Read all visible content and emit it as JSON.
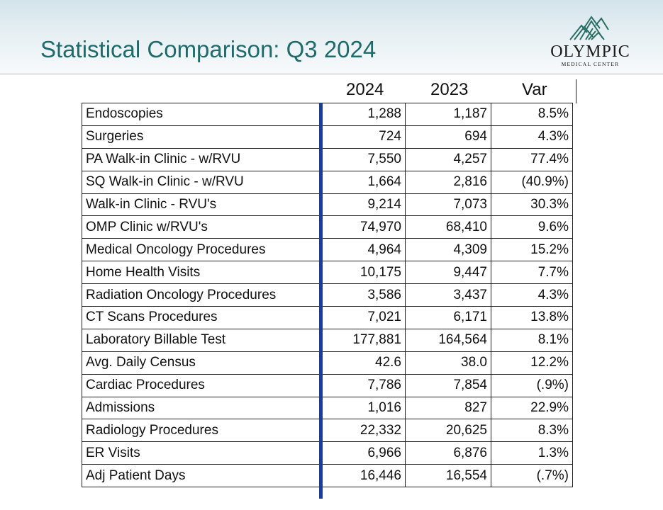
{
  "slide": {
    "title": "Statistical Comparison:  Q3 2024"
  },
  "logo": {
    "name": "OLYMPIC",
    "subtitle": "MEDICAL CENTER",
    "icon": "mountain-logo-icon"
  },
  "colors": {
    "title": "#1f6b6b",
    "negative": "#d0202a",
    "separator_bar": "#1c3d94"
  },
  "table": {
    "headers": [
      "2024",
      "2023",
      "Var"
    ],
    "rows": [
      {
        "label": "Endoscopies",
        "y2024": "1,288",
        "y2023": "1,187",
        "var": "8.5%",
        "negative": false
      },
      {
        "label": "Surgeries",
        "y2024": "724",
        "y2023": "694",
        "var": "4.3%",
        "negative": false
      },
      {
        "label": "PA Walk-in Clinic - w/RVU",
        "y2024": "7,550",
        "y2023": "4,257",
        "var": "77.4%",
        "negative": false
      },
      {
        "label": "SQ Walk-in Clinic - w/RVU",
        "y2024": "1,664",
        "y2023": "2,816",
        "var": "(40.9%)",
        "negative": true
      },
      {
        "label": "Walk-in Clinic - RVU's",
        "y2024": "9,214",
        "y2023": "7,073",
        "var": "30.3%",
        "negative": false
      },
      {
        "label": "OMP Clinic w/RVU's",
        "y2024": "74,970",
        "y2023": "68,410",
        "var": "9.6%",
        "negative": false
      },
      {
        "label": "Medical Oncology Procedures",
        "y2024": "4,964",
        "y2023": "4,309",
        "var": "15.2%",
        "negative": false
      },
      {
        "label": "Home Health Visits",
        "y2024": "10,175",
        "y2023": "9,447",
        "var": "7.7%",
        "negative": false
      },
      {
        "label": "Radiation Oncology Procedures",
        "y2024": "3,586",
        "y2023": "3,437",
        "var": "4.3%",
        "negative": false
      },
      {
        "label": "CT Scans Procedures",
        "y2024": "7,021",
        "y2023": "6,171",
        "var": "13.8%",
        "negative": false
      },
      {
        "label": "Laboratory Billable Test",
        "y2024": "177,881",
        "y2023": "164,564",
        "var": "8.1%",
        "negative": false
      },
      {
        "label": "Avg. Daily Census",
        "y2024": "42.6",
        "y2023": "38.0",
        "var": "12.2%",
        "negative": false
      },
      {
        "label": "Cardiac Procedures",
        "y2024": "7,786",
        "y2023": "7,854",
        "var": "(.9%)",
        "negative": true
      },
      {
        "label": "Admissions",
        "y2024": "1,016",
        "y2023": "827",
        "var": "22.9%",
        "negative": false
      },
      {
        "label": "Radiology Procedures",
        "y2024": "22,332",
        "y2023": "20,625",
        "var": "8.3%",
        "negative": false
      },
      {
        "label": "ER Visits",
        "y2024": "6,966",
        "y2023": "6,876",
        "var": "1.3%",
        "negative": false
      },
      {
        "label": "Adj Patient Days",
        "y2024": "16,446",
        "y2023": "16,554",
        "var": "(.7%)",
        "negative": true
      }
    ]
  }
}
